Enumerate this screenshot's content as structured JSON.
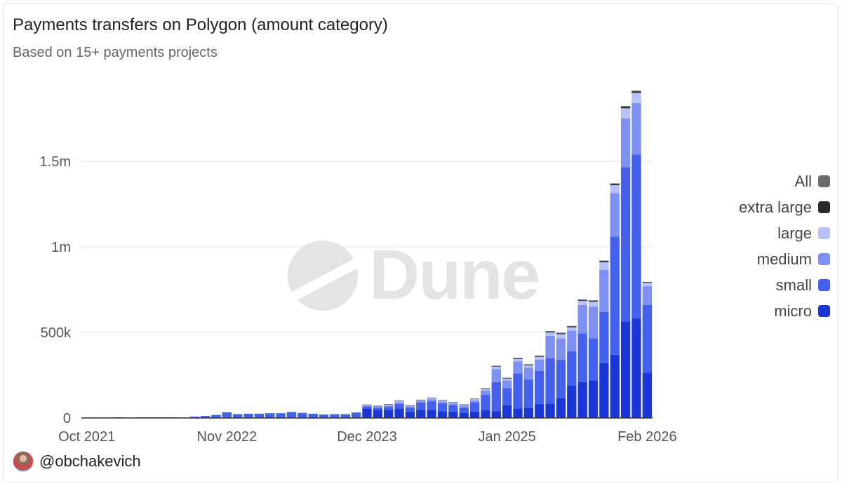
{
  "header": {
    "title": "Payments transfers on Polygon (amount category)",
    "subtitle": "Based on 15+ payments projects"
  },
  "watermark": {
    "text": "Dune"
  },
  "footer": {
    "handle": "@obchakevich"
  },
  "legend": {
    "items": [
      {
        "label": "All",
        "color": "#6b6b6b"
      },
      {
        "label": "extra large",
        "color": "#2a2a2a"
      },
      {
        "label": "large",
        "color": "#b6c2f9"
      },
      {
        "label": "medium",
        "color": "#7e90f2"
      },
      {
        "label": "small",
        "color": "#4560ec"
      },
      {
        "label": "micro",
        "color": "#1c35d6"
      }
    ]
  },
  "chart_data": {
    "type": "bar",
    "stacked": true,
    "title": "Payments transfers on Polygon (amount category)",
    "subtitle": "Based on 15+ payments projects",
    "xlabel": "",
    "ylabel": "",
    "ylim": [
      0,
      1900000
    ],
    "y_ticks": [
      {
        "value": 0,
        "label": "0"
      },
      {
        "value": 500000,
        "label": "500k"
      },
      {
        "value": 1000000,
        "label": "1m"
      },
      {
        "value": 1500000,
        "label": "1.5m"
      }
    ],
    "x_ticks": [
      {
        "index": 0,
        "label": "Oct 2021"
      },
      {
        "index": 13,
        "label": "Nov 2022"
      },
      {
        "index": 26,
        "label": "Dec 2023"
      },
      {
        "index": 39,
        "label": "Jan 2025"
      },
      {
        "index": 52,
        "label": "Feb 2026"
      }
    ],
    "grid": true,
    "legend_position": "right",
    "categories": [
      "Oct 2021",
      "Nov 2021",
      "Dec 2021",
      "Jan 2022",
      "Feb 2022",
      "Mar 2022",
      "Apr 2022",
      "May 2022",
      "Jun 2022",
      "Jul 2022",
      "Aug 2022",
      "Sep 2022",
      "Oct 2022",
      "Nov 2022",
      "Dec 2022",
      "Jan 2023",
      "Feb 2023",
      "Mar 2023",
      "Apr 2023",
      "May 2023",
      "Jun 2023",
      "Jul 2023",
      "Aug 2023",
      "Sep 2023",
      "Oct 2023",
      "Nov 2023",
      "Dec 2023",
      "Jan 2024",
      "Feb 2024",
      "Mar 2024",
      "Apr 2024",
      "May 2024",
      "Jun 2024",
      "Jul 2024",
      "Aug 2024",
      "Sep 2024",
      "Oct 2024",
      "Nov 2024",
      "Dec 2024",
      "Jan 2025",
      "Feb 2025",
      "Mar 2025",
      "Apr 2025",
      "May 2025",
      "Jun 2025",
      "Jul 2025",
      "Aug 2025",
      "Sep 2025",
      "Oct 2025",
      "Nov 2025",
      "Dec 2025",
      "Jan 2026",
      "Feb 2026"
    ],
    "series": [
      {
        "name": "micro",
        "values": [
          0,
          0,
          0,
          0,
          0,
          0,
          0,
          0,
          0,
          0,
          0,
          0,
          0,
          0,
          0,
          0,
          0,
          0,
          0,
          0,
          0,
          0,
          0,
          0,
          0,
          0,
          55000,
          48000,
          45000,
          55000,
          38000,
          48000,
          48000,
          40000,
          38000,
          30000,
          38000,
          45000,
          40000,
          75000,
          55000,
          60000,
          80000,
          85000,
          115000,
          190000,
          210000,
          220000,
          320000,
          370000,
          565000,
          580000,
          265000
        ]
      },
      {
        "name": "small",
        "values": [
          3000,
          3000,
          3000,
          4000,
          3000,
          4000,
          4000,
          4000,
          4000,
          3000,
          8000,
          12000,
          18000,
          33000,
          22000,
          25000,
          25000,
          28000,
          28000,
          35000,
          30000,
          25000,
          20000,
          22000,
          22000,
          32000,
          12000,
          12000,
          20000,
          28000,
          23000,
          42000,
          50000,
          44000,
          37000,
          30000,
          52000,
          90000,
          170000,
          100000,
          205000,
          165000,
          195000,
          265000,
          225000,
          200000,
          285000,
          245000,
          300000,
          690000,
          900000,
          960000,
          395000
        ]
      },
      {
        "name": "medium",
        "values": [
          0,
          0,
          0,
          0,
          0,
          0,
          0,
          0,
          0,
          0,
          0,
          0,
          0,
          0,
          0,
          0,
          0,
          0,
          0,
          0,
          0,
          0,
          0,
          0,
          0,
          0,
          5000,
          5000,
          8000,
          10000,
          7000,
          8000,
          12000,
          12000,
          10000,
          12000,
          12000,
          25000,
          75000,
          45000,
          70000,
          68000,
          65000,
          130000,
          125000,
          120000,
          165000,
          185000,
          245000,
          255000,
          285000,
          300000,
          110000
        ]
      },
      {
        "name": "large",
        "values": [
          0,
          0,
          0,
          0,
          0,
          0,
          0,
          0,
          0,
          0,
          0,
          0,
          0,
          0,
          0,
          0,
          0,
          0,
          0,
          0,
          0,
          0,
          0,
          0,
          0,
          0,
          3000,
          3000,
          5000,
          5000,
          3000,
          5000,
          5000,
          5000,
          5000,
          5000,
          8000,
          10000,
          15000,
          10000,
          15000,
          15000,
          18000,
          20000,
          25000,
          20000,
          25000,
          30000,
          45000,
          45000,
          60000,
          60000,
          20000
        ]
      },
      {
        "name": "extra large",
        "values": [
          0,
          0,
          0,
          0,
          0,
          0,
          0,
          0,
          0,
          0,
          0,
          0,
          0,
          0,
          0,
          0,
          0,
          0,
          0,
          0,
          0,
          0,
          0,
          0,
          0,
          0,
          1000,
          1000,
          1000,
          1000,
          1000,
          1000,
          1000,
          1000,
          1000,
          1000,
          1000,
          2000,
          3000,
          3000,
          4000,
          4000,
          4000,
          5000,
          5000,
          5000,
          5000,
          5000,
          6000,
          7000,
          8000,
          8000,
          3000
        ]
      },
      {
        "name": "All",
        "values": [
          0,
          0,
          0,
          0,
          0,
          0,
          0,
          0,
          0,
          0,
          0,
          0,
          0,
          0,
          0,
          0,
          0,
          0,
          0,
          0,
          0,
          0,
          0,
          0,
          0,
          0,
          1000,
          1000,
          1000,
          1000,
          1000,
          1000,
          1000,
          1000,
          1000,
          1000,
          1000,
          1000,
          2000,
          2000,
          2000,
          2000,
          2000,
          3000,
          3000,
          3000,
          3000,
          3000,
          4000,
          4000,
          5000,
          5000,
          2000
        ]
      }
    ]
  }
}
